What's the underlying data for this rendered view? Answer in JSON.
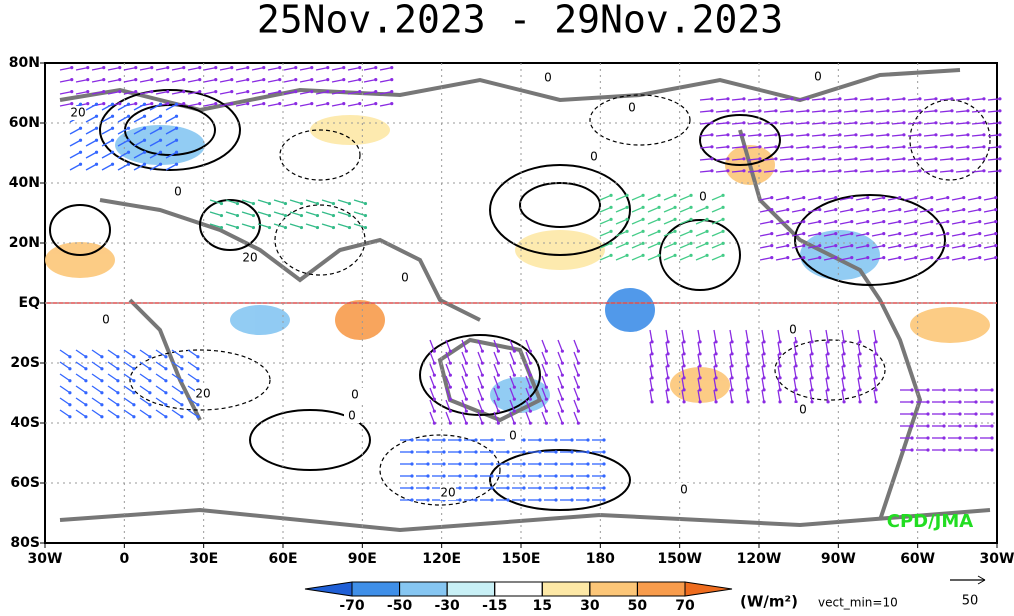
{
  "title": "25Nov.2023 - 29Nov.2023",
  "lat_labels": [
    "80N",
    "60N",
    "40N",
    "20N",
    "EQ",
    "20S",
    "40S",
    "60S",
    "80S"
  ],
  "lon_labels": [
    "30W",
    "0",
    "30E",
    "60E",
    "90E",
    "120E",
    "150E",
    "180",
    "150W",
    "120W",
    "90W",
    "60W",
    "30W"
  ],
  "contour_labels": [
    20,
    0,
    0,
    0,
    0,
    20,
    0,
    0,
    0,
    0,
    0,
    20,
    0,
    0,
    0,
    20,
    0,
    0
  ],
  "colorbar": {
    "ticks": [
      -70,
      -50,
      -30,
      -15,
      15,
      30,
      50,
      70
    ],
    "colors": [
      "#1f5fd6",
      "#3f8fe8",
      "#86c6f2",
      "#c8f0f6",
      "#ffffff",
      "#fde8a6",
      "#fcc678",
      "#f89c4c",
      "#ee6c1e"
    ]
  },
  "unit": "(W/m²)",
  "vector_note": "vect_min=10",
  "reference_vector": 50,
  "credit": "CPD/JMA"
}
